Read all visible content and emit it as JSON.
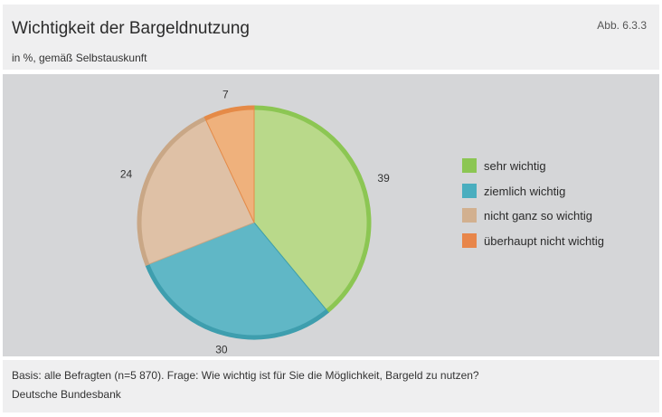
{
  "header": {
    "title": "Wichtigkeit der Bargeldnutzung",
    "figure_number": "Abb. 6.3.3",
    "subtitle": "in %, gemäß Selbstauskunft"
  },
  "footer": {
    "basis": "Basis: alle Befragten (n=5 870). Frage: Wie wichtig ist für Sie die Möglichkeit, Bargeld zu nutzen?",
    "source": "Deutsche Bundesbank"
  },
  "chart_data": {
    "type": "pie",
    "title": "Wichtigkeit der Bargeldnutzung",
    "subtitle": "in %, gemäß Selbstauskunft",
    "legend_position": "right",
    "categories": [
      "sehr wichtig",
      "ziemlich wichtig",
      "nicht ganz so wichtig",
      "überhaupt nicht wichtig"
    ],
    "values": [
      39,
      30,
      24,
      7
    ],
    "colors": [
      "#b9d98a",
      "#60b7c6",
      "#dfc1a6",
      "#efb17c"
    ],
    "edge_colors": [
      "#8cc653",
      "#3e9eae",
      "#c9a786",
      "#e58a47"
    ],
    "legend_colors": [
      "#8cc653",
      "#4aaebf",
      "#d2b08f",
      "#e8864a"
    ],
    "start_angle_deg": 0
  }
}
